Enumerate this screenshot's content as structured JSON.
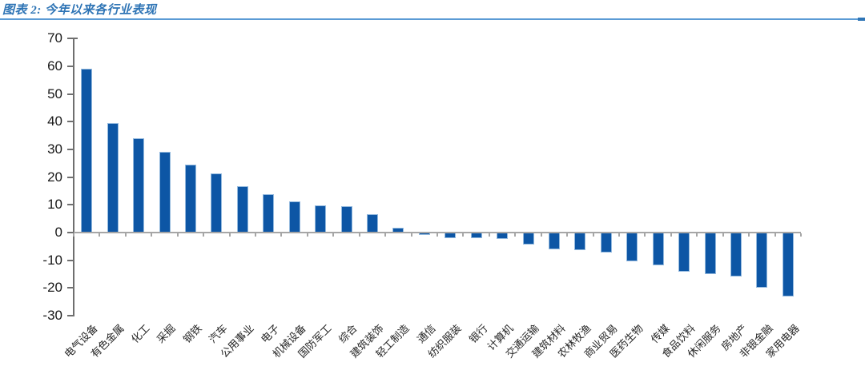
{
  "header": {
    "title": "图表 2: 今年以来各行业表现",
    "title_color": "#2E74B5",
    "rule_color": "#5B9BD5",
    "rule_cap_color": "#2E75B6"
  },
  "chart_data": {
    "type": "bar",
    "title": "图表 2: 今年以来各行业表现",
    "xlabel": "",
    "ylabel": "",
    "ylim": [
      -30,
      70
    ],
    "y_ticks": [
      70,
      60,
      50,
      40,
      30,
      20,
      10,
      0,
      -10,
      -20,
      -30
    ],
    "grid": false,
    "legend": false,
    "bar_color": "#0D56A5",
    "bar_edge_color": "#93b9de",
    "categories": [
      "电气设备",
      "有色金属",
      "化工",
      "采掘",
      "钢铁",
      "汽车",
      "公用事业",
      "电子",
      "机械设备",
      "国防军工",
      "综合",
      "建筑装饰",
      "轻工制造",
      "通信",
      "纺织服装",
      "银行",
      "计算机",
      "交通运输",
      "建筑材料",
      "农林牧渔",
      "商业贸易",
      "医药生物",
      "传媒",
      "食品饮料",
      "休闲服务",
      "房地产",
      "非银金融",
      "家用电器"
    ],
    "values": [
      59,
      39.5,
      34,
      29,
      24.5,
      21.2,
      16.8,
      13.8,
      11.2,
      9.7,
      9.5,
      6.6,
      1.8,
      -0.8,
      -2.1,
      -2.1,
      -2.4,
      -4.2,
      -6,
      -6.3,
      -7.1,
      -10.4,
      -11.9,
      -14,
      -14.9,
      -15.8,
      -19.9,
      -23
    ]
  }
}
